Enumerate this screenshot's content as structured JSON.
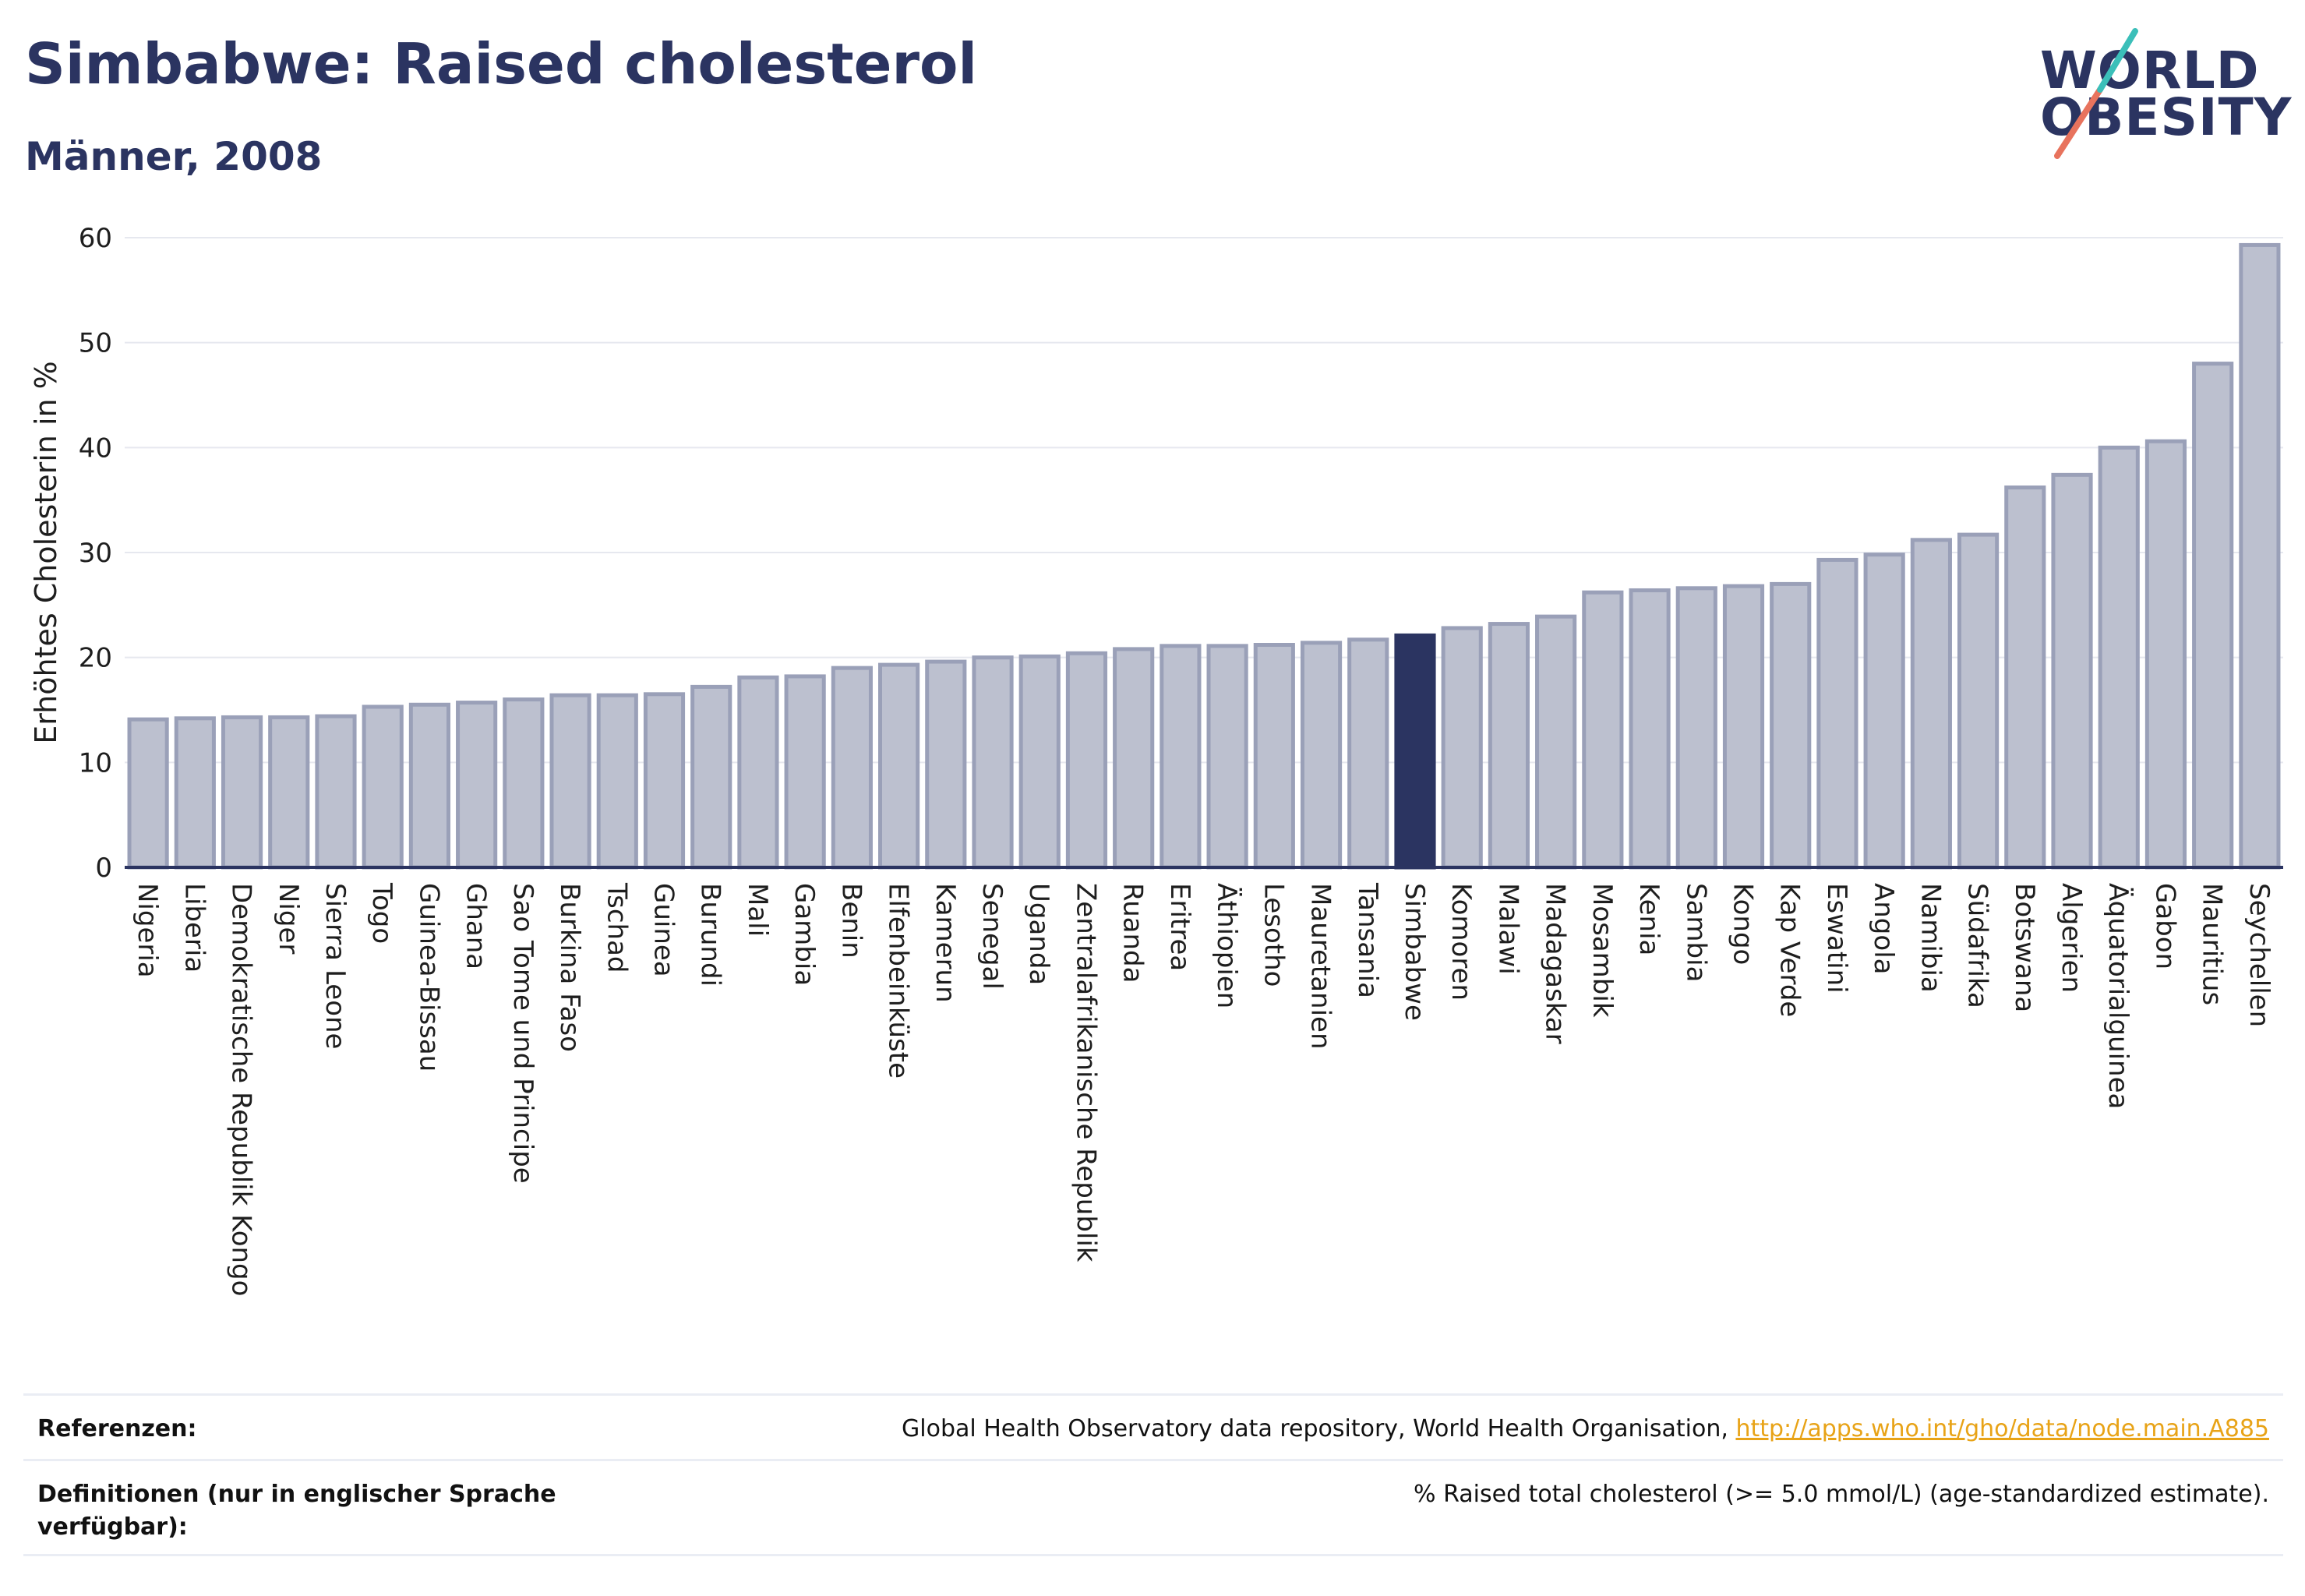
{
  "header": {
    "title": "Simbabwe: Raised cholesterol",
    "subtitle": "Männer, 2008"
  },
  "logo": {
    "line1": "WORLD",
    "line2": "OBESITY"
  },
  "colors": {
    "bar": "#bcc0cf",
    "bar_border": "#9aa0b8",
    "highlight": "#2b3461",
    "grid": "#e6e8ef",
    "axis": "#2b3461"
  },
  "chart_data": {
    "type": "bar",
    "ylabel": "Erhöhtes Cholesterin in %",
    "ylim": [
      0,
      60
    ],
    "yticks": [
      0,
      10,
      20,
      30,
      40,
      50,
      60
    ],
    "highlight": "Simbabwe",
    "categories": [
      "Nigeria",
      "Liberia",
      "Demokratische Republik Kongo",
      "Niger",
      "Sierra Leone",
      "Togo",
      "Guinea-Bissau",
      "Ghana",
      "Sao Tome und Principe",
      "Burkina Faso",
      "Tschad",
      "Guinea",
      "Burundi",
      "Mali",
      "Gambia",
      "Benin",
      "Elfenbeinküste",
      "Kamerun",
      "Senegal",
      "Uganda",
      "Zentralafrikanische Republik",
      "Ruanda",
      "Eritrea",
      "Äthiopien",
      "Lesotho",
      "Mauretanien",
      "Tansania",
      "Simbabwe",
      "Komoren",
      "Malawi",
      "Madagaskar",
      "Mosambik",
      "Kenia",
      "Sambia",
      "Kongo",
      "Kap Verde",
      "Eswatini",
      "Angola",
      "Namibia",
      "Südafrika",
      "Botswana",
      "Algerien",
      "Äquatorialguinea",
      "Gabon",
      "Mauritius",
      "Seychellen"
    ],
    "values": [
      14.1,
      14.2,
      14.3,
      14.3,
      14.4,
      15.3,
      15.5,
      15.7,
      16.0,
      16.4,
      16.4,
      16.5,
      17.2,
      18.1,
      18.2,
      19.0,
      19.3,
      19.6,
      20.0,
      20.1,
      20.4,
      20.8,
      21.1,
      21.1,
      21.2,
      21.4,
      21.7,
      22.1,
      22.8,
      23.2,
      23.9,
      26.2,
      26.4,
      26.6,
      26.8,
      27.0,
      29.3,
      29.8,
      31.2,
      31.7,
      36.2,
      37.4,
      40.0,
      40.6,
      48.0,
      59.3
    ]
  },
  "footer": {
    "references_label": "Referenzen:",
    "references_text": "Global Health Observatory data repository, World Health Organisation, ",
    "references_link": "http://apps.who.int/gho/data/node.main.A885",
    "definitions_label": "Definitionen (nur in englischer Sprache verfügbar):",
    "definitions_text": "% Raised total cholesterol (>= 5.0 mmol/L) (age-standardized estimate)."
  }
}
